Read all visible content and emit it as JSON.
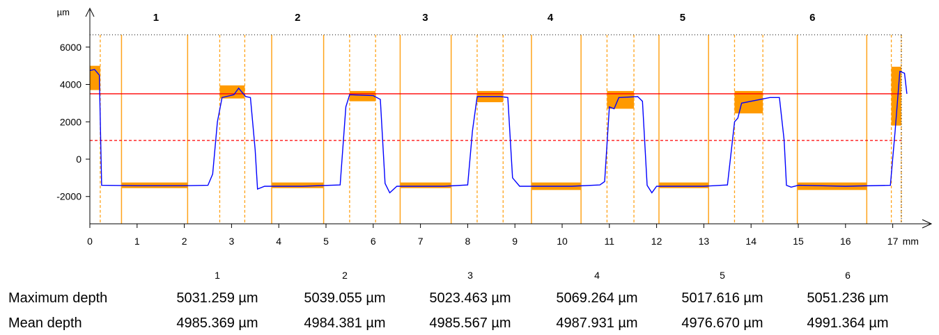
{
  "chart_data": {
    "type": "line",
    "y_unit": "µm",
    "x_unit": "mm",
    "x_ticks": [
      0,
      1,
      2,
      3,
      4,
      5,
      6,
      7,
      8,
      9,
      10,
      11,
      12,
      13,
      14,
      15,
      16,
      17
    ],
    "y_ticks": [
      6000,
      4000,
      2000,
      0,
      -2000
    ],
    "xlim": [
      0,
      17.55
    ],
    "ylim": [
      -3400,
      6900
    ],
    "reference_lines": {
      "solid": 3500,
      "dashed": 1000
    },
    "section_labels": [
      "1",
      "2",
      "3",
      "4",
      "5",
      "6"
    ],
    "section_label_x": [
      1.4,
      4.4,
      7.1,
      9.75,
      12.55,
      15.3
    ],
    "profile": [
      [
        0,
        4750
      ],
      [
        0.1,
        4800
      ],
      [
        0.2,
        4500
      ],
      [
        0.25,
        -1400
      ],
      [
        1,
        -1420
      ],
      [
        2,
        -1420
      ],
      [
        2.5,
        -1400
      ],
      [
        2.6,
        -800
      ],
      [
        2.7,
        2000
      ],
      [
        2.8,
        3300
      ],
      [
        3.05,
        3450
      ],
      [
        3.15,
        3800
      ],
      [
        3.3,
        3350
      ],
      [
        3.4,
        3300
      ],
      [
        3.5,
        500
      ],
      [
        3.55,
        -1600
      ],
      [
        3.7,
        -1450
      ],
      [
        4.5,
        -1450
      ],
      [
        5.3,
        -1380
      ],
      [
        5.42,
        2800
      ],
      [
        5.5,
        3450
      ],
      [
        6.0,
        3400
      ],
      [
        6.15,
        3200
      ],
      [
        6.25,
        -1300
      ],
      [
        6.35,
        -1800
      ],
      [
        6.5,
        -1450
      ],
      [
        7.5,
        -1450
      ],
      [
        8.0,
        -1380
      ],
      [
        8.1,
        1500
      ],
      [
        8.2,
        3350
      ],
      [
        8.7,
        3350
      ],
      [
        8.85,
        3300
      ],
      [
        8.95,
        -1000
      ],
      [
        9.1,
        -1450
      ],
      [
        10.2,
        -1450
      ],
      [
        10.8,
        -1380
      ],
      [
        10.9,
        -1200
      ],
      [
        11.0,
        2800
      ],
      [
        11.1,
        2700
      ],
      [
        11.2,
        3300
      ],
      [
        11.6,
        3350
      ],
      [
        11.7,
        3100
      ],
      [
        11.8,
        -1400
      ],
      [
        11.9,
        -1800
      ],
      [
        12.0,
        -1450
      ],
      [
        13.0,
        -1450
      ],
      [
        13.5,
        -1380
      ],
      [
        13.65,
        2000
      ],
      [
        13.72,
        2200
      ],
      [
        13.8,
        3000
      ],
      [
        14.4,
        3300
      ],
      [
        14.6,
        3300
      ],
      [
        14.7,
        1000
      ],
      [
        14.75,
        -1400
      ],
      [
        14.85,
        -1500
      ],
      [
        15.0,
        -1400
      ],
      [
        16.0,
        -1450
      ],
      [
        16.95,
        -1400
      ],
      [
        17.05,
        1500
      ],
      [
        17.15,
        4700
      ],
      [
        17.25,
        4600
      ],
      [
        17.3,
        3500
      ]
    ],
    "orange_regions": [
      {
        "x": [
          0,
          0.22
        ],
        "y": [
          3700,
          5000
        ]
      },
      {
        "x": [
          0.67,
          2.07
        ],
        "y": [
          -1550,
          -1250
        ]
      },
      {
        "x": [
          2.75,
          3.28
        ],
        "y": [
          3250,
          3950
        ]
      },
      {
        "x": [
          3.85,
          4.95
        ],
        "y": [
          -1550,
          -1250
        ]
      },
      {
        "x": [
          5.5,
          6.05
        ],
        "y": [
          3100,
          3650
        ]
      },
      {
        "x": [
          6.57,
          7.65
        ],
        "y": [
          -1550,
          -1250
        ]
      },
      {
        "x": [
          8.2,
          8.75
        ],
        "y": [
          3050,
          3650
        ]
      },
      {
        "x": [
          9.35,
          10.4
        ],
        "y": [
          -1650,
          -1250
        ]
      },
      {
        "x": [
          10.95,
          11.52
        ],
        "y": [
          2700,
          3650
        ]
      },
      {
        "x": [
          12.05,
          13.1
        ],
        "y": [
          -1550,
          -1250
        ]
      },
      {
        "x": [
          13.65,
          14.25
        ],
        "y": [
          2450,
          3650
        ]
      },
      {
        "x": [
          14.98,
          16.45
        ],
        "y": [
          -1650,
          -1250
        ]
      },
      {
        "x": [
          16.97,
          17.18
        ],
        "y": [
          1800,
          4950
        ]
      }
    ],
    "solid_verticals": [
      0.67,
      2.07,
      3.85,
      4.95,
      6.57,
      7.65,
      9.35,
      10.4,
      12.05,
      13.1,
      14.98,
      16.45
    ],
    "dashed_verticals": [
      0.22,
      2.75,
      3.28,
      5.5,
      6.05,
      8.2,
      8.75,
      10.95,
      11.52,
      13.65,
      14.25,
      16.97,
      17.18
    ]
  },
  "table": {
    "columns": [
      "1",
      "2",
      "3",
      "4",
      "5",
      "6"
    ],
    "rows": [
      {
        "label": "Maximum depth",
        "values": [
          "5031.259 µm",
          "5039.055 µm",
          "5023.463 µm",
          "5069.264 µm",
          "5017.616 µm",
          "5051.236 µm"
        ]
      },
      {
        "label": "Mean depth",
        "values": [
          "4985.369 µm",
          "4984.381 µm",
          "4985.567 µm",
          "4987.931 µm",
          "4976.670 µm",
          "4991.364 µm"
        ]
      }
    ]
  }
}
